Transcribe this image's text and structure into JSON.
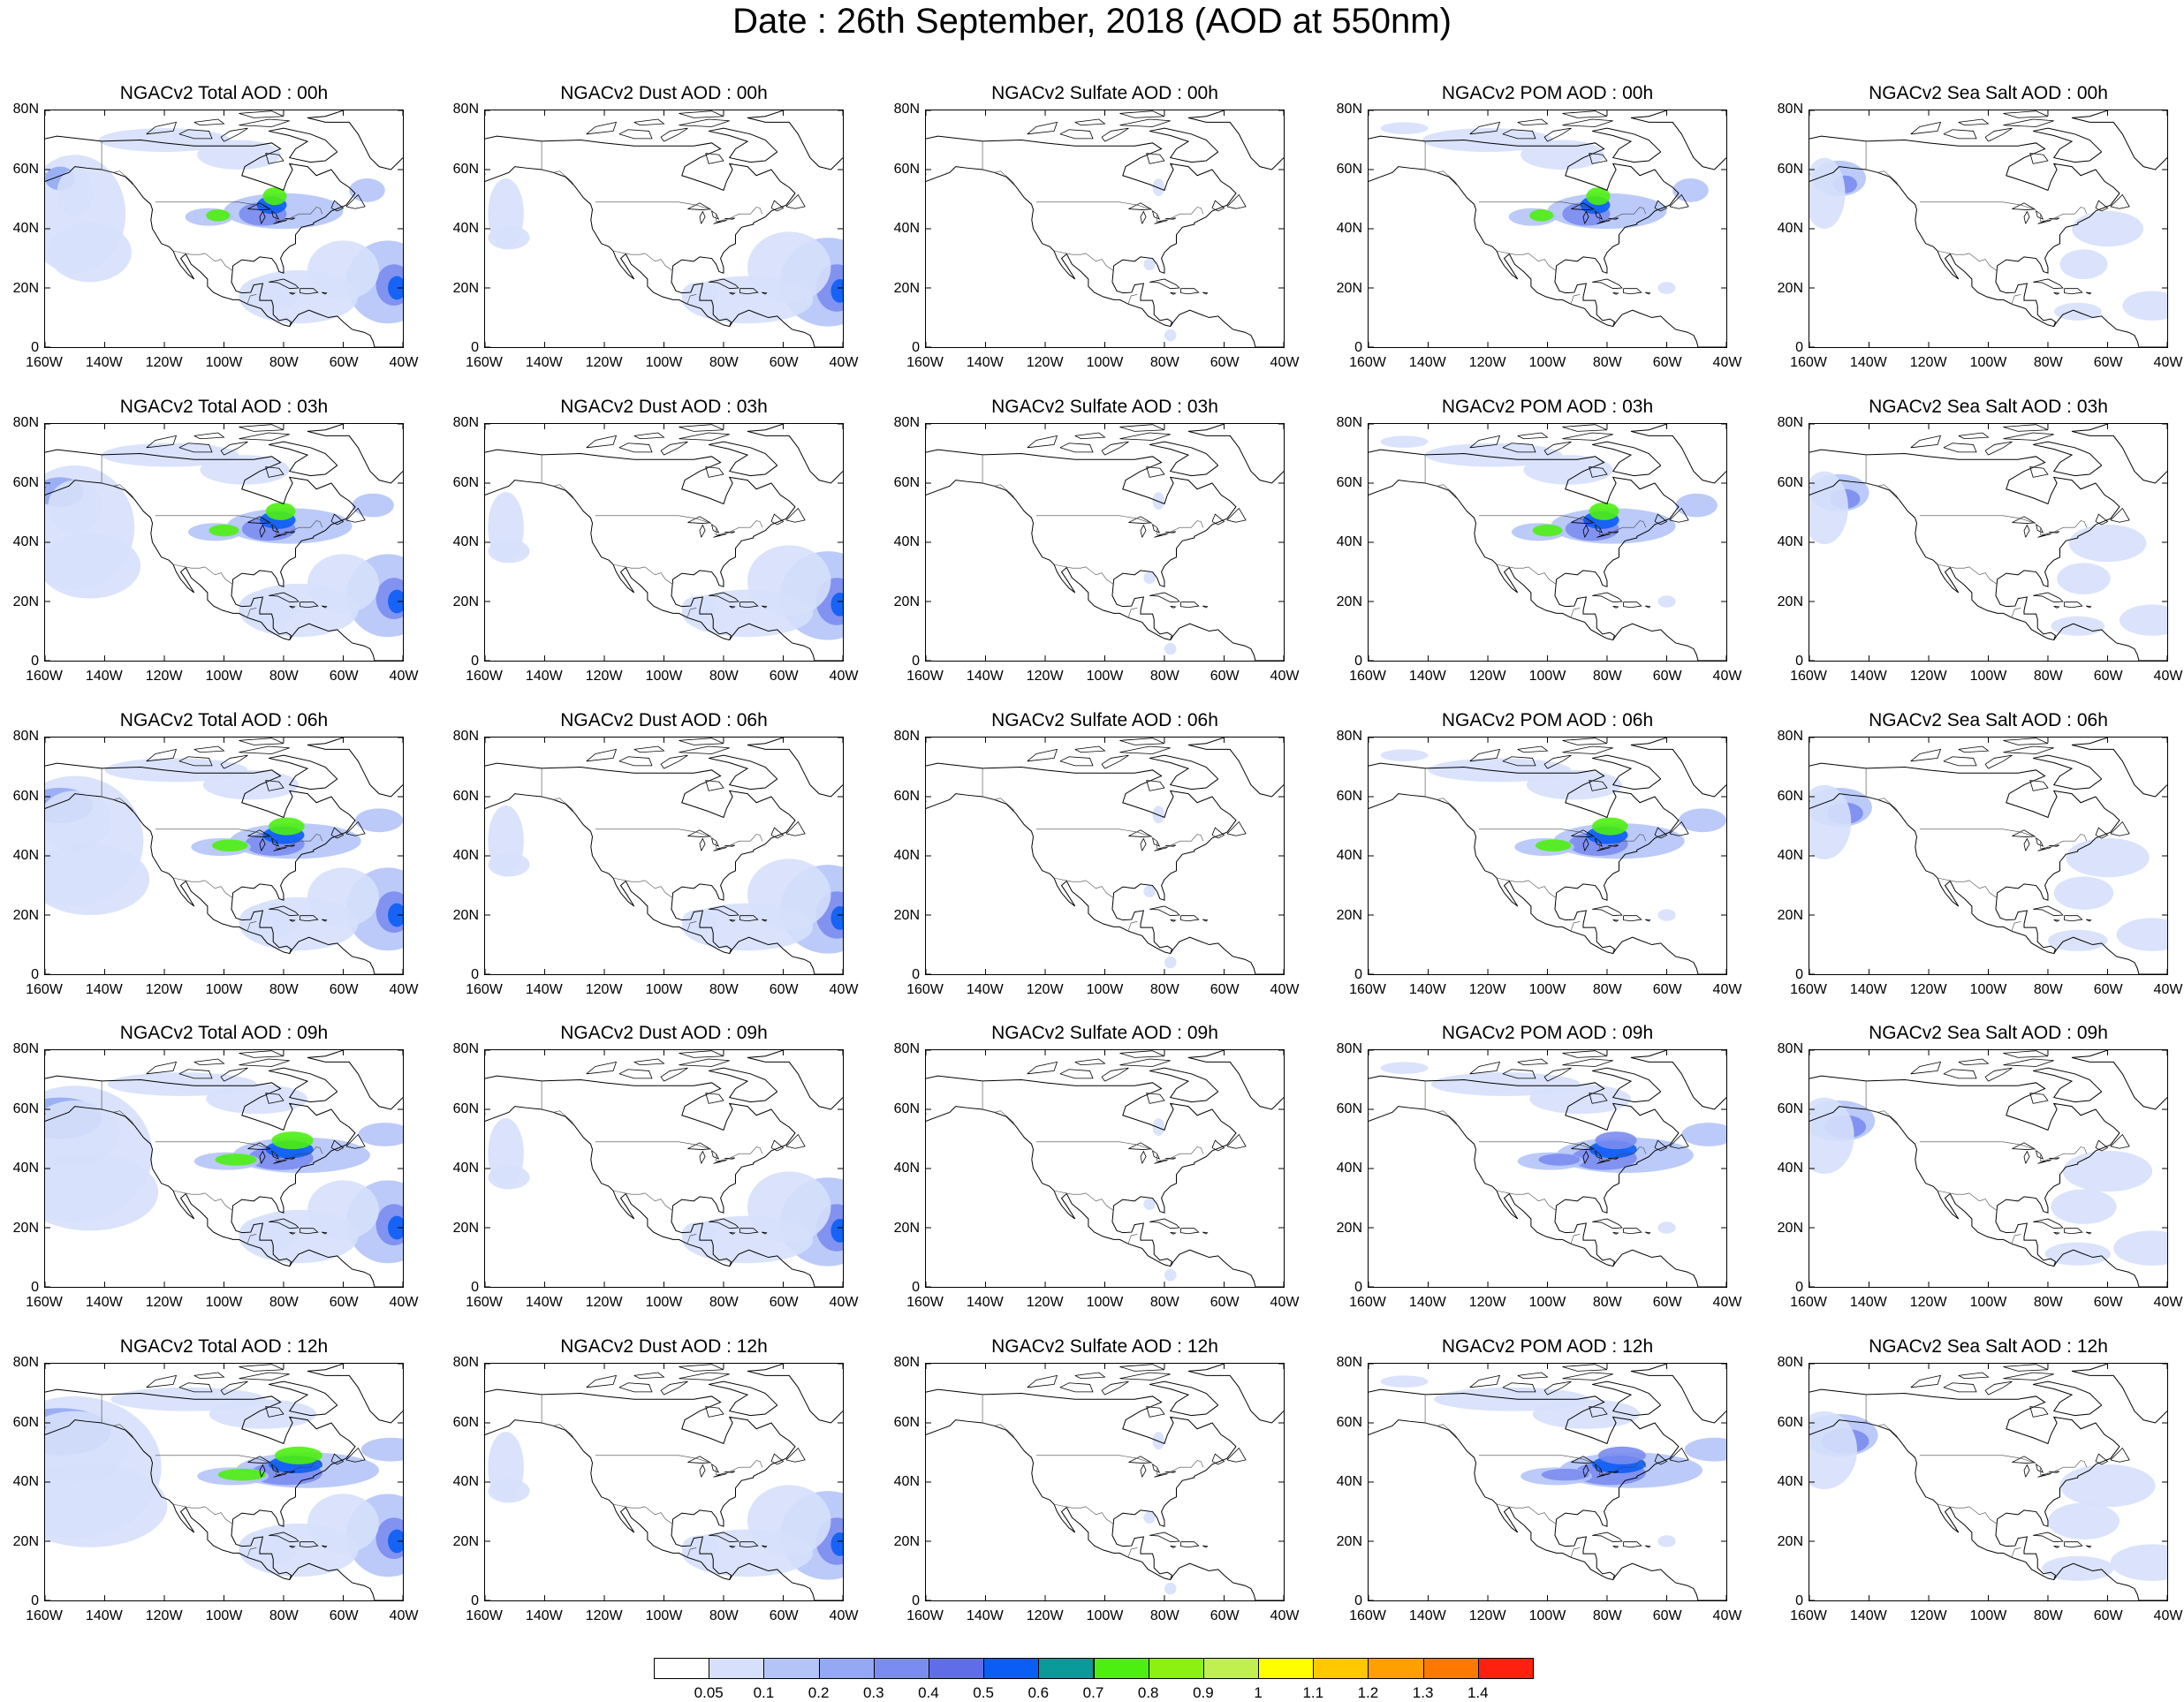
{
  "title": "Date : 26th September, 2018 (AOD at 550nm)",
  "panels": [
    [
      "NGACv2 Total AOD : 00h",
      "NGACv2 Dust AOD : 00h",
      "NGACv2 Sulfate AOD : 00h",
      "NGACv2 POM AOD : 00h",
      "NGACv2 Sea Salt AOD : 00h"
    ],
    [
      "NGACv2 Total AOD : 03h",
      "NGACv2 Dust AOD : 03h",
      "NGACv2 Sulfate AOD : 03h",
      "NGACv2 POM AOD : 03h",
      "NGACv2 Sea Salt AOD : 03h"
    ],
    [
      "NGACv2 Total AOD : 06h",
      "NGACv2 Dust AOD : 06h",
      "NGACv2 Sulfate AOD : 06h",
      "NGACv2 POM AOD : 06h",
      "NGACv2 Sea Salt AOD : 06h"
    ],
    [
      "NGACv2 Total AOD : 09h",
      "NGACv2 Dust AOD : 09h",
      "NGACv2 Sulfate AOD : 09h",
      "NGACv2 POM AOD : 09h",
      "NGACv2 Sea Salt  AOD : 09h"
    ],
    [
      "NGACv2 Total AOD  : 12h",
      "NGACv2 Dust AOD : 12h",
      "NGACv2 Sulfate AOD : 12h",
      "NGACv2 POM  AOD : 12h",
      "NGACv2 Sea Salt  AOD : 12h"
    ]
  ],
  "lat_labels": [
    "80N",
    "60N",
    "40N",
    "20N",
    "0"
  ],
  "lon_labels": [
    "160W",
    "140W",
    "120W",
    "100W",
    "80W",
    "60W",
    "40W"
  ],
  "colorbar": {
    "labels": [
      "0.05",
      "0.1",
      "0.2",
      "0.3",
      "0.4",
      "0.5",
      "0.6",
      "0.7",
      "0.8",
      "0.9",
      "1",
      "1.1",
      "1.2",
      "1.3",
      "1.4"
    ],
    "colors": [
      "#ffffff",
      "#d6e0fb",
      "#b4c4f7",
      "#94a8f3",
      "#7b8cf0",
      "#5f6ee8",
      "#0a5ef5",
      "#0a9a9a",
      "#4cf010",
      "#8cf010",
      "#c0f050",
      "#ffff00",
      "#ffc800",
      "#ffa000",
      "#ff7800",
      "#ff2010"
    ]
  }
}
